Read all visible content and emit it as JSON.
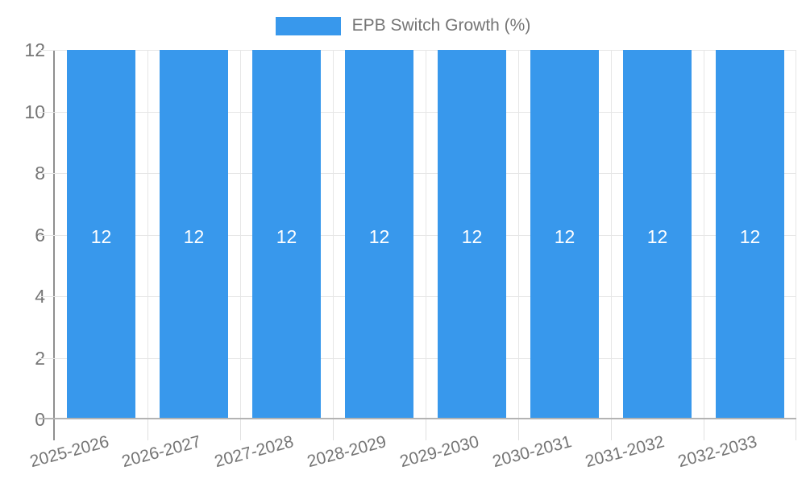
{
  "legend": {
    "label": "EPB Switch Growth (%)",
    "swatch_color": "#3898ec"
  },
  "chart_data": {
    "type": "bar",
    "title": "EPB Switch Growth (%)",
    "categories": [
      "2025-2026",
      "2026-2027",
      "2027-2028",
      "2028-2029",
      "2029-2030",
      "2030-2031",
      "2031-2032",
      "2032-2033"
    ],
    "series": [
      {
        "name": "EPB Switch Growth (%)",
        "values": [
          12,
          12,
          12,
          12,
          12,
          12,
          12,
          12
        ]
      }
    ],
    "values": [
      12,
      12,
      12,
      12,
      12,
      12,
      12,
      12
    ],
    "xlabel": "",
    "ylabel": "",
    "ylim": [
      0,
      12
    ],
    "yticks": [
      0,
      2,
      4,
      6,
      8,
      10,
      12
    ],
    "grid": true,
    "legend_position": "top",
    "bar_color": "#3898ec",
    "value_label_color": "#ffffff",
    "axis_text_color": "#757575",
    "gridline_color": "#e6e6e6"
  }
}
